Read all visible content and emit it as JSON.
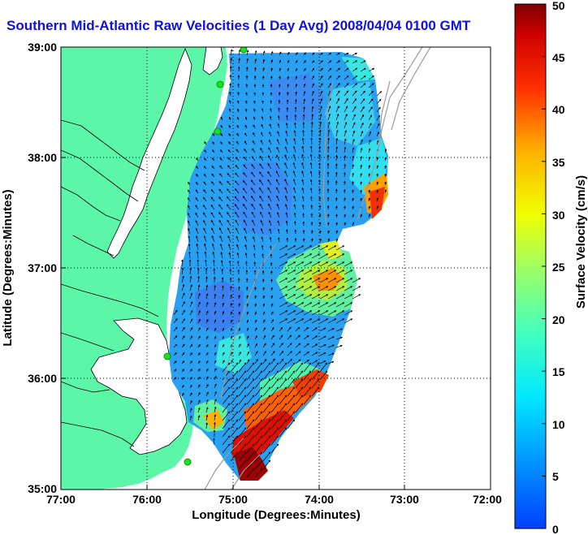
{
  "title": "Southern Mid-Atlantic Raw Velocities (1 Day Avg) 2008/04/04 0100 GMT",
  "map": {
    "xlabel": "Longitude (Degrees:Minutes)",
    "ylabel": "Latitude (Degrees:Minutes)",
    "x_ticks": [
      "77:00",
      "76:00",
      "75:00",
      "74:00",
      "73:00",
      "72:00"
    ],
    "y_ticks": [
      "39:00",
      "38:00",
      "37:00",
      "36:00",
      "35:00"
    ],
    "lon_range": [
      -77,
      -72
    ],
    "lat_range": [
      35,
      39
    ],
    "grid": true,
    "land_color": "#5cf6a8",
    "station_color": "#16e616"
  },
  "colorbar": {
    "label": "Surface Velocity (cm/s)",
    "min": 0,
    "max": 50,
    "ticks": [
      "0",
      "5",
      "10",
      "15",
      "20",
      "25",
      "30",
      "35",
      "40",
      "45",
      "50"
    ],
    "colormap": "jet"
  }
}
